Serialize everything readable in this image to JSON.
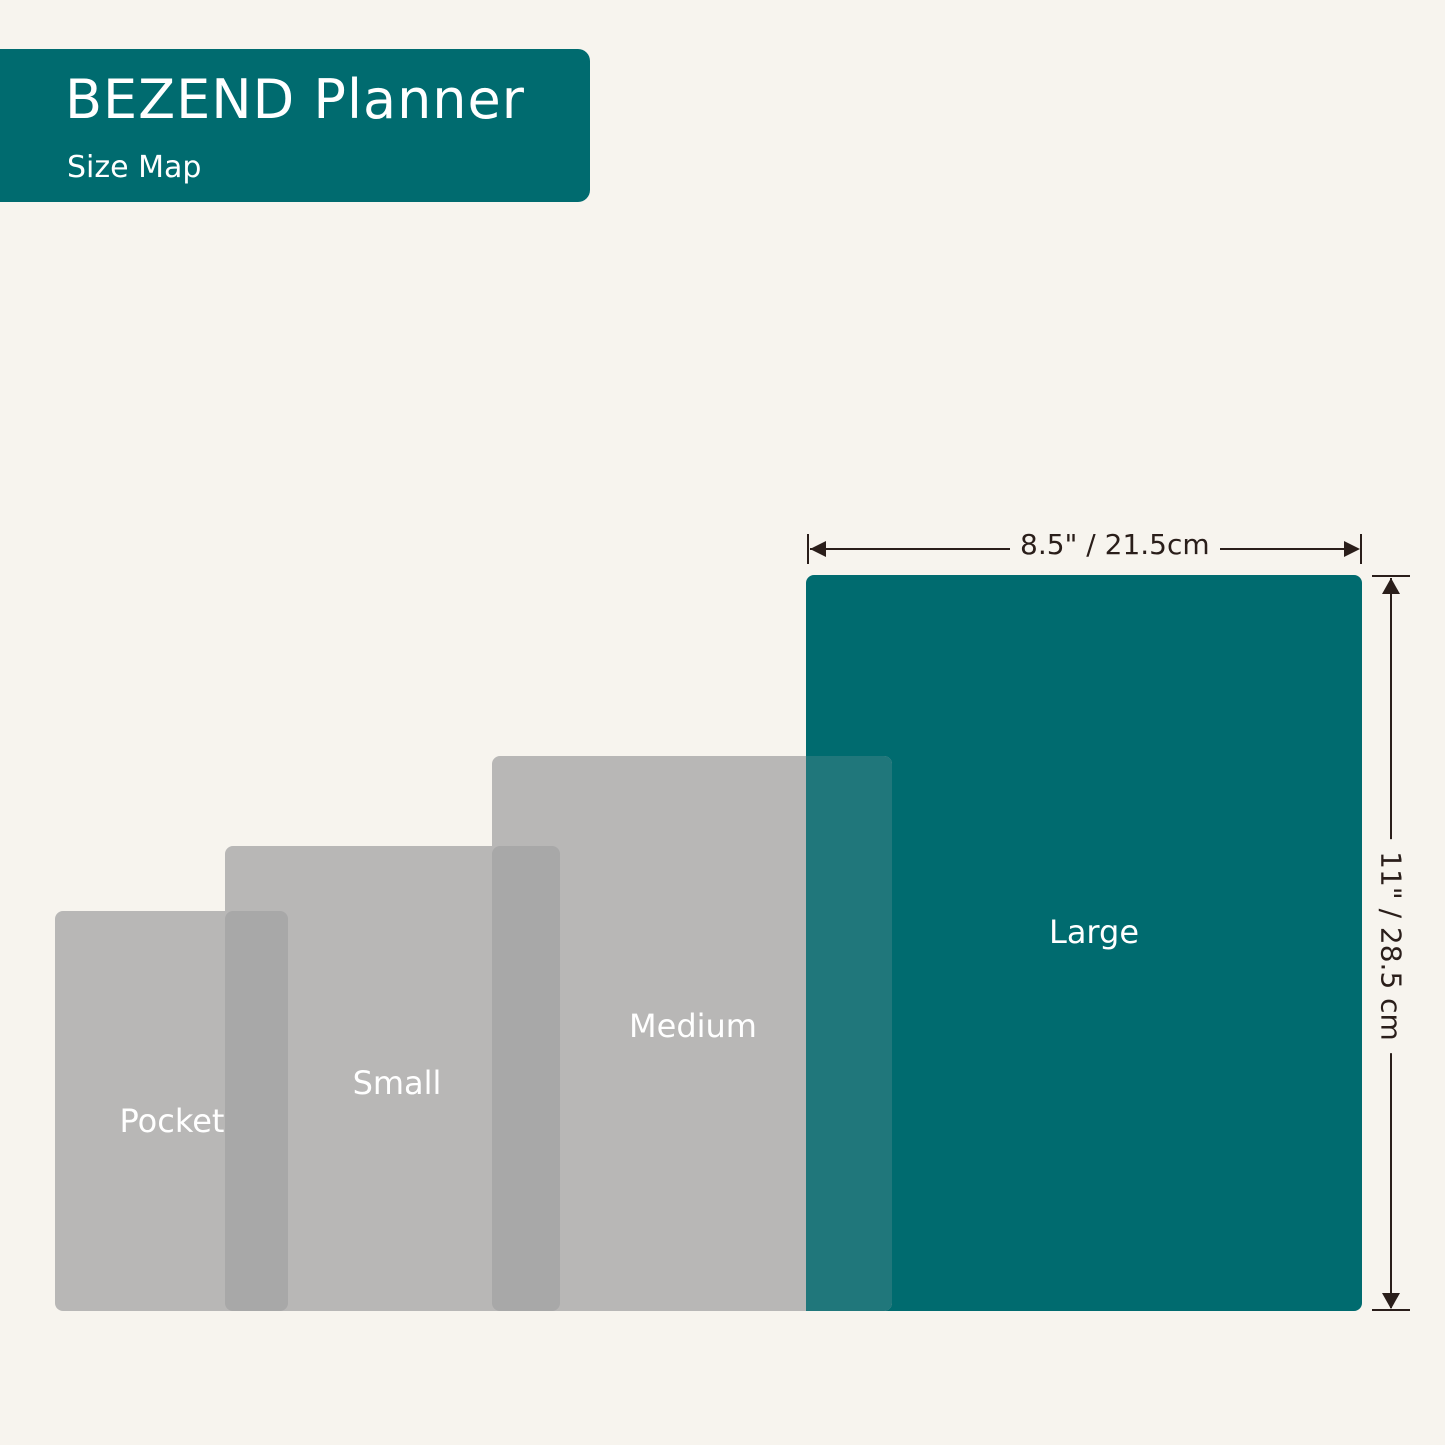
{
  "header": {
    "title": "BEZEND Planner",
    "subtitle": "Size Map"
  },
  "sizes": [
    {
      "label": "Pocket"
    },
    {
      "label": "Small"
    },
    {
      "label": "Medium"
    },
    {
      "label": "Large"
    }
  ],
  "dimensions": {
    "large_width": "8.5\" / 21.5cm",
    "large_height": "11\" / 28.5 cm"
  },
  "colors": {
    "brand": "#006b6f",
    "gray": "#b8b7b6",
    "background": "#f7f4ee"
  }
}
